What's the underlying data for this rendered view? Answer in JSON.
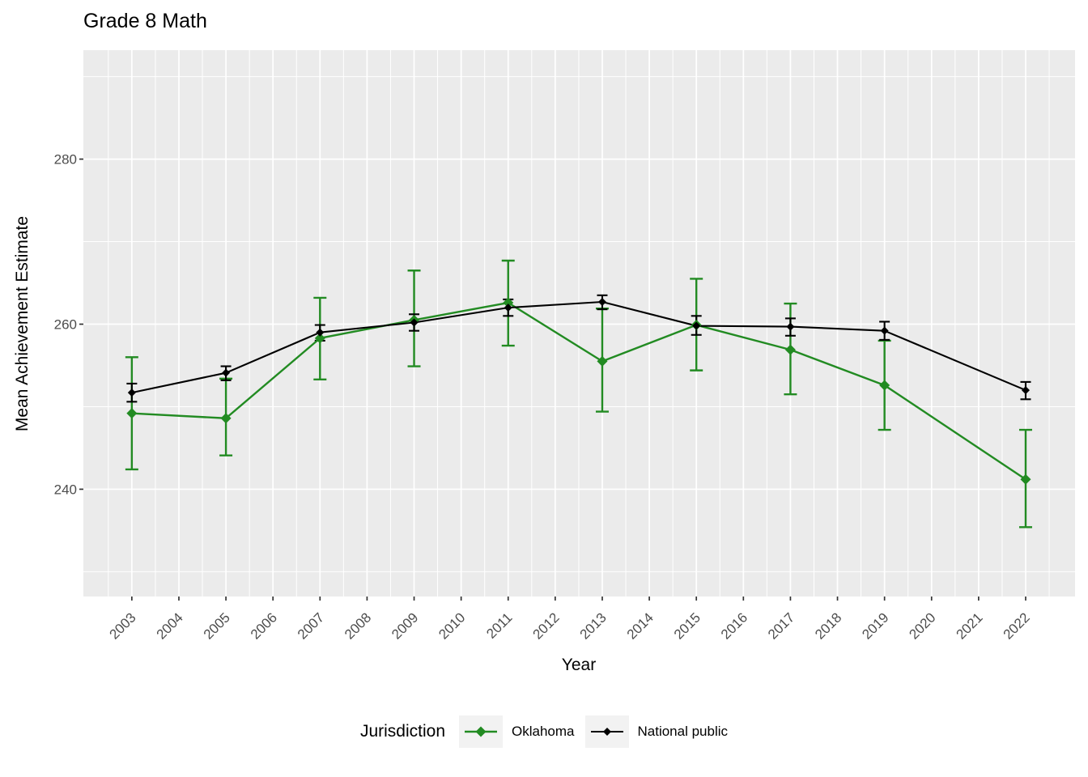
{
  "chart_data": {
    "type": "line",
    "title": "Grade 8 Math",
    "xlabel": "Year",
    "ylabel": "Mean Achievement Estimate",
    "legend_title": "Jurisdiction",
    "legend_position": "bottom",
    "error_bars": true,
    "marker": "diamond",
    "panel_background": "#EBEBEB",
    "grid_color": "#FFFFFF",
    "tick_label_color": "#4D4D4D",
    "axis": {
      "x_ticks": [
        2003,
        2004,
        2005,
        2006,
        2007,
        2008,
        2009,
        2010,
        2011,
        2012,
        2013,
        2014,
        2015,
        2016,
        2017,
        2018,
        2019,
        2020,
        2021,
        2022
      ],
      "y_ticks": [
        240,
        260,
        280
      ],
      "y_minor_ticks": [
        230,
        250,
        270,
        290
      ],
      "xlim": [
        2001.97,
        2023.05
      ],
      "ylim": [
        227.0,
        293.2
      ]
    },
    "x": [
      2003,
      2005,
      2007,
      2009,
      2011,
      2013,
      2015,
      2017,
      2019,
      2022
    ],
    "series": [
      {
        "name": "Oklahoma",
        "color": "#228B22",
        "values": [
          249.2,
          248.6,
          258.3,
          260.5,
          262.6,
          255.5,
          259.9,
          256.9,
          252.6,
          241.2
        ],
        "err_low": [
          242.4,
          244.1,
          253.3,
          254.9,
          257.4,
          249.4,
          254.4,
          251.5,
          247.2,
          235.4
        ],
        "err_high": [
          256.0,
          253.4,
          263.2,
          266.5,
          267.7,
          261.9,
          265.5,
          262.5,
          258.0,
          247.2
        ]
      },
      {
        "name": "National public",
        "color": "#000000",
        "values": [
          251.7,
          254.1,
          259.0,
          260.2,
          262.0,
          262.7,
          259.8,
          259.7,
          259.2,
          252.0
        ],
        "err_low": [
          250.6,
          253.2,
          258.0,
          259.2,
          261.0,
          261.8,
          258.7,
          258.6,
          258.1,
          250.9
        ],
        "err_high": [
          252.8,
          254.9,
          259.9,
          261.2,
          263.0,
          263.5,
          261.0,
          260.7,
          260.3,
          253.0
        ]
      }
    ]
  }
}
